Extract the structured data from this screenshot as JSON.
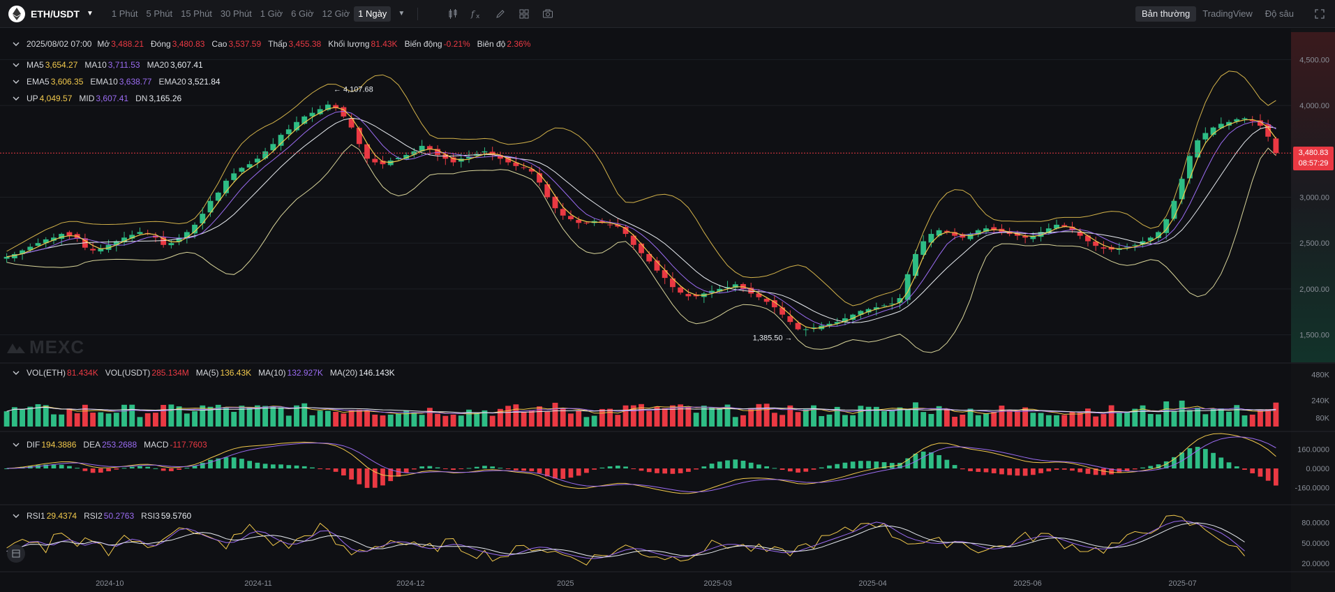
{
  "toolbar": {
    "pair": "ETH/USDT",
    "intervals": [
      "1 Phút",
      "5 Phút",
      "15 Phút",
      "30 Phút",
      "1 Giờ",
      "6 Giờ",
      "12 Giờ",
      "1 Ngày"
    ],
    "active_interval": "1 Ngày",
    "modes": [
      "Bản thường",
      "TradingView",
      "Độ sâu"
    ],
    "active_mode": "Bản thường",
    "icons": [
      "candle-settings-icon",
      "indicator-fx-icon",
      "pen-draw-icon",
      "layout-grid-icon",
      "camera-icon",
      "fullscreen-icon"
    ]
  },
  "ohlc": {
    "date": "2025/08/02 07:00",
    "open_label": "Mở",
    "open": "3,488.21",
    "close_label": "Đóng",
    "close": "3,480.83",
    "high_label": "Cao",
    "high": "3,537.59",
    "low_label": "Thấp",
    "low": "3,455.38",
    "volume_label": "Khối lượng",
    "volume": "81.43K",
    "change_label": "Biến động",
    "change": "-0.21%",
    "amplitude_label": "Biên độ",
    "amplitude": "2.36%"
  },
  "ma": {
    "ma5_label": "MA5",
    "ma5": "3,654.27",
    "ma10_label": "MA10",
    "ma10": "3,711.53",
    "ma20_label": "MA20",
    "ma20": "3,607.41"
  },
  "ema": {
    "ema5_label": "EMA5",
    "ema5": "3,606.35",
    "ema10_label": "EMA10",
    "ema10": "3,638.77",
    "ema20_label": "EMA20",
    "ema20": "3,521.84"
  },
  "boll": {
    "up_label": "UP",
    "up": "4,049.57",
    "mid_label": "MID",
    "mid": "3,607.41",
    "dn_label": "DN",
    "dn": "3,165.26"
  },
  "volume": {
    "vol_eth_label": "VOL(ETH)",
    "vol_eth": "81.434K",
    "vol_usdt_label": "VOL(USDT)",
    "vol_usdt": "285.134M",
    "ma5_label": "MA(5)",
    "ma5": "136.43K",
    "ma10_label": "MA(10)",
    "ma10": "132.927K",
    "ma20_label": "MA(20)",
    "ma20": "146.143K"
  },
  "macd": {
    "dif_label": "DIF",
    "dif": "194.3886",
    "dea_label": "DEA",
    "dea": "253.2688",
    "macd_label": "MACD",
    "macd": "-117.7603"
  },
  "rsi": {
    "rsi1_label": "RSI1",
    "rsi1": "29.4374",
    "rsi2_label": "RSI2",
    "rsi2": "50.2763",
    "rsi3_label": "RSI3",
    "rsi3": "59.5760"
  },
  "watermark": "MEXC",
  "last_price": "3,480.83",
  "countdown": "08:57:29",
  "colors": {
    "up": "#2ebd85",
    "down": "#ea3943",
    "ma5": "#f2c94c",
    "ma10": "#9b6cf2",
    "ma20": "#e8ecf1",
    "boll": "#d4b34a",
    "bg": "#0f1014"
  },
  "chart_data": {
    "type": "candlestick",
    "price_axis_ticks": [
      "4,500.00",
      "4,000.00",
      "3,000.00",
      "2,500.00",
      "2,000.00",
      "1,500.00"
    ],
    "price_axis_tick_values": [
      4500,
      4000,
      3000,
      2500,
      2000,
      1500
    ],
    "price_range": [
      1200,
      4800
    ],
    "volume_axis_ticks": [
      "480K",
      "240K",
      "80K"
    ],
    "volume_axis_tick_values": [
      480,
      240,
      80
    ],
    "macd_axis_ticks": [
      "160.0000",
      "0.0000",
      "-160.0000"
    ],
    "macd_axis_tick_values": [
      160,
      0,
      -160
    ],
    "rsi_axis_ticks": [
      "80.0000",
      "50.0000",
      "20.0000"
    ],
    "rsi_axis_tick_values": [
      80,
      50,
      20
    ],
    "x_ticks": [
      "2024-10",
      "2024-11",
      "2024-12",
      "2025",
      "2025-03",
      "2025-04",
      "2025-06",
      "2025-07"
    ],
    "max_marker": "4,107.68",
    "min_marker": "1,385.50",
    "close_series": [
      2350,
      2380,
      2420,
      2460,
      2500,
      2540,
      2560,
      2600,
      2580,
      2550,
      2450,
      2420,
      2440,
      2480,
      2520,
      2560,
      2590,
      2620,
      2600,
      2560,
      2480,
      2500,
      2560,
      2620,
      2700,
      2820,
      2960,
      3050,
      3180,
      3260,
      3320,
      3360,
      3420,
      3500,
      3580,
      3680,
      3740,
      3820,
      3880,
      3920,
      3960,
      4010,
      3970,
      3880,
      3760,
      3580,
      3420,
      3380,
      3360,
      3400,
      3430,
      3460,
      3500,
      3560,
      3520,
      3460,
      3420,
      3380,
      3420,
      3440,
      3470,
      3500,
      3460,
      3420,
      3380,
      3340,
      3320,
      3280,
      3160,
      3000,
      2880,
      2800,
      2760,
      2720,
      2720,
      2740,
      2720,
      2700,
      2680,
      2600,
      2480,
      2390,
      2300,
      2200,
      2120,
      2020,
      1960,
      1920,
      1920,
      1950,
      1980,
      2000,
      2020,
      2050,
      2000,
      1950,
      1910,
      1860,
      1800,
      1720,
      1640,
      1560,
      1560,
      1580,
      1600,
      1620,
      1640,
      1680,
      1720,
      1760,
      1780,
      1800,
      1820,
      1840,
      1900,
      2160,
      2380,
      2520,
      2600,
      2640,
      2620,
      2580,
      2560,
      2600,
      2640,
      2660,
      2640,
      2620,
      2600,
      2580,
      2560,
      2580,
      2620,
      2660,
      2700,
      2680,
      2640,
      2580,
      2520,
      2470,
      2440,
      2430,
      2440,
      2460,
      2480,
      2520,
      2560,
      2620,
      2760,
      2960,
      3200,
      3450,
      3620,
      3700,
      3760,
      3800,
      3820,
      3850,
      3860,
      3830,
      3780,
      3660,
      3481
    ],
    "rsi_series": [
      38,
      45,
      52,
      58,
      47,
      40,
      55,
      62,
      48,
      42,
      50,
      58,
      44,
      40,
      52,
      60,
      55,
      46,
      42,
      50,
      62,
      70,
      76,
      68,
      60,
      58,
      54,
      50,
      48,
      56,
      64,
      72,
      66,
      58,
      52,
      48,
      46,
      52,
      60,
      68,
      74,
      62,
      50,
      40,
      34,
      38,
      42,
      46,
      50,
      54,
      52,
      48,
      44,
      40,
      42,
      46,
      50,
      48,
      44,
      40,
      36,
      34,
      32,
      30,
      34,
      38,
      42,
      46,
      44,
      40,
      36,
      32,
      30,
      28,
      26,
      28,
      32,
      36,
      40,
      44,
      42,
      38,
      34,
      32,
      30,
      28,
      30,
      34,
      38,
      42,
      46,
      50,
      48,
      46,
      44,
      42,
      40,
      38,
      36,
      34,
      38,
      42,
      46,
      50,
      54,
      58,
      62,
      66,
      70,
      78,
      84,
      80,
      72,
      64,
      58,
      54,
      52,
      50,
      48,
      50,
      52,
      54,
      50,
      46,
      42,
      40,
      42,
      46,
      50,
      54,
      58,
      60,
      62,
      58,
      54,
      50,
      46,
      44,
      42,
      40,
      42,
      46,
      50,
      54,
      60,
      66,
      72,
      78,
      82,
      84,
      82,
      78,
      74,
      70,
      66,
      58,
      48,
      38,
      29
    ]
  }
}
